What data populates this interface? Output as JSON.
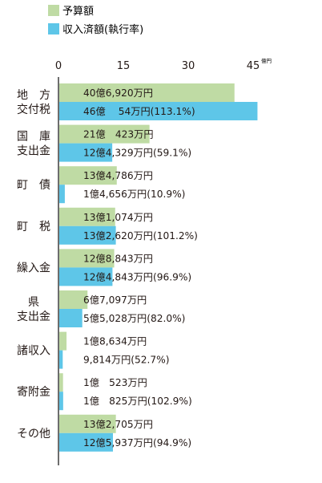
{
  "chart_data": {
    "type": "bar",
    "orientation": "horizontal",
    "title": "",
    "xlabel": "",
    "ylabel": "",
    "unit_label": "億円",
    "xlim": [
      0,
      45
    ],
    "x_ticks": [
      "0",
      "15",
      "30",
      "45"
    ],
    "x_tick_values": [
      0,
      15,
      30,
      45
    ],
    "grid": false,
    "legend_position": "top-left",
    "categories": [
      [
        "地　方",
        "交付税"
      ],
      [
        "国　庫",
        "支出金"
      ],
      [
        "町　債"
      ],
      [
        "町　税"
      ],
      [
        "繰入金"
      ],
      [
        "県",
        "支出金"
      ],
      [
        "諸収入"
      ],
      [
        "寄附金"
      ],
      [
        "その他"
      ]
    ],
    "series": [
      {
        "name": "予算額",
        "color": "#bfdba4",
        "values": [
          40.692,
          21.0423,
          13.4786,
          13.1074,
          12.8843,
          6.7097,
          1.8634,
          1.0523,
          13.2705
        ],
        "labels": [
          "40億6,920万円",
          "21億　423万円",
          "13億4,786万円",
          "13億1,074万円",
          "12億8,843万円",
          "6億7,097万円",
          "1億8,634万円",
          "1億　523万円",
          "13億2,705万円"
        ]
      },
      {
        "name": "収入済額(執行率)",
        "color": "#5ec6e8",
        "values": [
          46.0054,
          12.4329,
          1.4656,
          13.262,
          12.4843,
          5.5028,
          0.9814,
          1.0825,
          12.5937
        ],
        "labels": [
          "46億　 54万円(113.1%)",
          "12億4,329万円(59.1%)",
          "1億4,656万円(10.9%)",
          "13億2,620万円(101.2%)",
          "12億4,843万円(96.9%)",
          "5億5,028万円(82.0%)",
          "9,814万円(52.7%)",
          "1億　825万円(102.9%)",
          "12億5,937万円(94.9%)"
        ]
      }
    ]
  }
}
